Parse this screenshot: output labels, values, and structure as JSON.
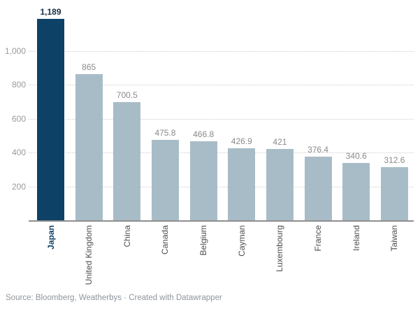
{
  "chart_data": {
    "type": "bar",
    "title": "",
    "xlabel": "",
    "ylabel": "",
    "categories": [
      "Japan",
      "United Kingdom",
      "China",
      "Canada",
      "Belgium",
      "Cayman",
      "Luxembourg",
      "France",
      "Ireland",
      "Taiwan"
    ],
    "values": [
      1189,
      865,
      700.5,
      475.8,
      466.8,
      426.9,
      421,
      376.4,
      340.6,
      312.6
    ],
    "value_labels": [
      "1,189",
      "865",
      "700.5",
      "475.8",
      "466.8",
      "426.9",
      "421",
      "376.4",
      "340.6",
      "312.6"
    ],
    "highlight_index": 0,
    "ylim": [
      0,
      1200
    ],
    "yticks": [
      {
        "value": 200,
        "label": "200"
      },
      {
        "value": 400,
        "label": "400"
      },
      {
        "value": 600,
        "label": "600"
      },
      {
        "value": 800,
        "label": "800"
      },
      {
        "value": 1000,
        "label": "1,000"
      }
    ],
    "grid": "horizontal-dotted",
    "legend": "none",
    "colors": {
      "highlight_bar": "#0e4166",
      "default_bar": "#a8bcc8",
      "value_label": "#8a8a8a",
      "highlight_value_label": "#172f45",
      "category_label": "#4d4d4d",
      "highlight_category_label": "#0e4166",
      "axis_line": "#8f8f8f",
      "gridline": "#cdcdcd",
      "tick_label": "#9a9a9a"
    }
  },
  "footer": {
    "source_text": "Source: Bloomberg, Weatherbys · Created with Datawrapper"
  }
}
